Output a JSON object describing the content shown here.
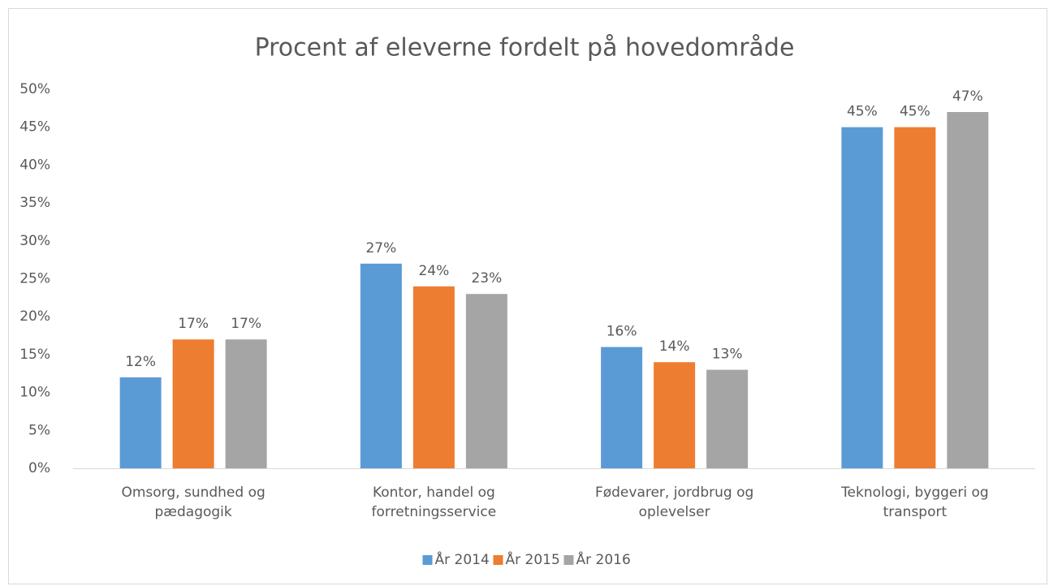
{
  "chart_data": {
    "type": "bar",
    "title": "Procent af eleverne fordelt på hovedområde",
    "categories": [
      "Omsorg, sundhed og pædagogik",
      "Kontor, handel og forretningsservice",
      "Fødevarer, jordbrug og oplevelser",
      "Teknologi, byggeri og transport"
    ],
    "series": [
      {
        "name": "År 2014",
        "color": "#5b9bd5",
        "values": [
          12,
          27,
          16,
          45
        ],
        "value_labels": [
          "12%",
          "27%",
          "16%",
          "45%"
        ]
      },
      {
        "name": "År 2015",
        "color": "#ed7d31",
        "values": [
          17,
          24,
          14,
          45
        ],
        "value_labels": [
          "17%",
          "24%",
          "14%",
          "45%"
        ]
      },
      {
        "name": "År 2016",
        "color": "#a5a5a5",
        "values": [
          17,
          23,
          13,
          47
        ],
        "value_labels": [
          "17%",
          "23%",
          "13%",
          "47%"
        ]
      }
    ],
    "ylim": [
      0,
      50
    ],
    "yticks": [
      {
        "value": 0,
        "label": "0%"
      },
      {
        "value": 5,
        "label": "5%"
      },
      {
        "value": 10,
        "label": "10%"
      },
      {
        "value": 15,
        "label": "15%"
      },
      {
        "value": 20,
        "label": "20%"
      },
      {
        "value": 25,
        "label": "25%"
      },
      {
        "value": 30,
        "label": "30%"
      },
      {
        "value": 35,
        "label": "35%"
      },
      {
        "value": 40,
        "label": "40%"
      },
      {
        "value": 45,
        "label": "45%"
      },
      {
        "value": 50,
        "label": "50%"
      }
    ],
    "grid": false,
    "legend": "bottom"
  }
}
